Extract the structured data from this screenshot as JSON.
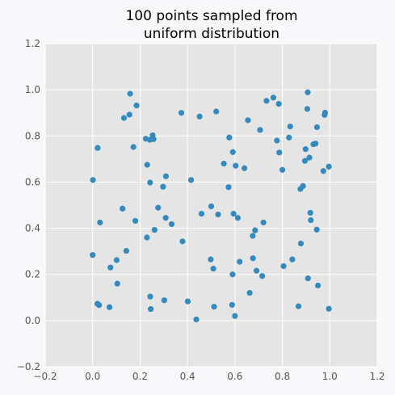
{
  "chart_data": {
    "type": "scatter",
    "title_lines": [
      "100 points sampled from",
      "uniform distribution"
    ],
    "xlabel": "",
    "ylabel": "",
    "xlim": [
      -0.2,
      1.2
    ],
    "ylim": [
      -0.2,
      1.2
    ],
    "x_ticks": [
      "−0.2",
      "0.0",
      "0.2",
      "0.4",
      "0.6",
      "0.8",
      "1.0",
      "1.2"
    ],
    "y_ticks": [
      "−0.2",
      "0.0",
      "0.2",
      "0.4",
      "0.6",
      "0.8",
      "1.0",
      "1.2"
    ],
    "grid": true,
    "colors": {
      "point": "#348abd",
      "plot_bg": "#e5e5e5",
      "grid": "#ffffff",
      "page_bg": "#f8f8fa"
    },
    "points": [
      [
        0.158,
        0.983
      ],
      [
        0.185,
        0.932
      ],
      [
        0.132,
        0.878
      ],
      [
        0.155,
        0.892
      ],
      [
        0.021,
        0.748
      ],
      [
        0.172,
        0.752
      ],
      [
        0.224,
        0.788
      ],
      [
        0.241,
        0.783
      ],
      [
        0.253,
        0.803
      ],
      [
        0.257,
        0.786
      ],
      [
        0.001,
        0.609
      ],
      [
        0.23,
        0.675
      ],
      [
        0.242,
        0.598
      ],
      [
        0.297,
        0.58
      ],
      [
        0.309,
        0.625
      ],
      [
        0.374,
        0.9
      ],
      [
        0.451,
        0.884
      ],
      [
        0.521,
        0.906
      ],
      [
        0.415,
        0.609
      ],
      [
        0.126,
        0.485
      ],
      [
        0.031,
        0.425
      ],
      [
        0.18,
        0.432
      ],
      [
        0.276,
        0.489
      ],
      [
        0.308,
        0.445
      ],
      [
        0.333,
        0.418
      ],
      [
        0.229,
        0.36
      ],
      [
        0.261,
        0.393
      ],
      [
        0.379,
        0.343
      ],
      [
        0.0,
        0.284
      ],
      [
        0.142,
        0.302
      ],
      [
        0.101,
        0.262
      ],
      [
        0.075,
        0.23
      ],
      [
        0.104,
        0.16
      ],
      [
        0.02,
        0.073
      ],
      [
        0.027,
        0.067
      ],
      [
        0.071,
        0.058
      ],
      [
        0.243,
        0.104
      ],
      [
        0.245,
        0.05
      ],
      [
        0.302,
        0.088
      ],
      [
        0.401,
        0.083
      ],
      [
        0.437,
        0.005
      ],
      [
        0.459,
        0.463
      ],
      [
        0.5,
        0.495
      ],
      [
        0.529,
        0.46
      ],
      [
        0.498,
        0.265
      ],
      [
        0.509,
        0.225
      ],
      [
        0.512,
        0.06
      ],
      [
        0.588,
        0.068
      ],
      [
        0.6,
        0.02
      ],
      [
        0.59,
        0.2
      ],
      [
        0.62,
        0.255
      ],
      [
        0.662,
        0.12
      ],
      [
        0.676,
        0.27
      ],
      [
        0.691,
        0.216
      ],
      [
        0.715,
        0.193
      ],
      [
        0.594,
        0.463
      ],
      [
        0.612,
        0.445
      ],
      [
        0.685,
        0.391
      ],
      [
        0.675,
        0.367
      ],
      [
        0.72,
        0.425
      ],
      [
        0.553,
        0.68
      ],
      [
        0.603,
        0.671
      ],
      [
        0.64,
        0.66
      ],
      [
        0.573,
        0.578
      ],
      [
        0.576,
        0.793
      ],
      [
        0.591,
        0.73
      ],
      [
        0.655,
        0.868
      ],
      [
        0.706,
        0.826
      ],
      [
        0.733,
        0.952
      ],
      [
        0.762,
        0.966
      ],
      [
        0.785,
        0.939
      ],
      [
        0.777,
        0.78
      ],
      [
        0.787,
        0.728
      ],
      [
        0.8,
        0.653
      ],
      [
        0.833,
        0.841
      ],
      [
        0.828,
        0.793
      ],
      [
        0.876,
        0.57
      ],
      [
        0.887,
        0.583
      ],
      [
        0.895,
        0.692
      ],
      [
        0.898,
        0.743
      ],
      [
        0.905,
        0.917
      ],
      [
        0.907,
        0.989
      ],
      [
        0.914,
        0.706
      ],
      [
        0.931,
        0.764
      ],
      [
        0.94,
        0.767
      ],
      [
        0.946,
        0.838
      ],
      [
        0.973,
        0.648
      ],
      [
        0.978,
        0.891
      ],
      [
        0.98,
        0.901
      ],
      [
        0.996,
        0.667
      ],
      [
        0.918,
        0.467
      ],
      [
        0.92,
        0.435
      ],
      [
        0.945,
        0.394
      ],
      [
        0.878,
        0.334
      ],
      [
        0.842,
        0.265
      ],
      [
        0.805,
        0.236
      ],
      [
        0.908,
        0.183
      ],
      [
        0.95,
        0.152
      ],
      [
        0.868,
        0.062
      ],
      [
        0.996,
        0.051
      ]
    ]
  }
}
